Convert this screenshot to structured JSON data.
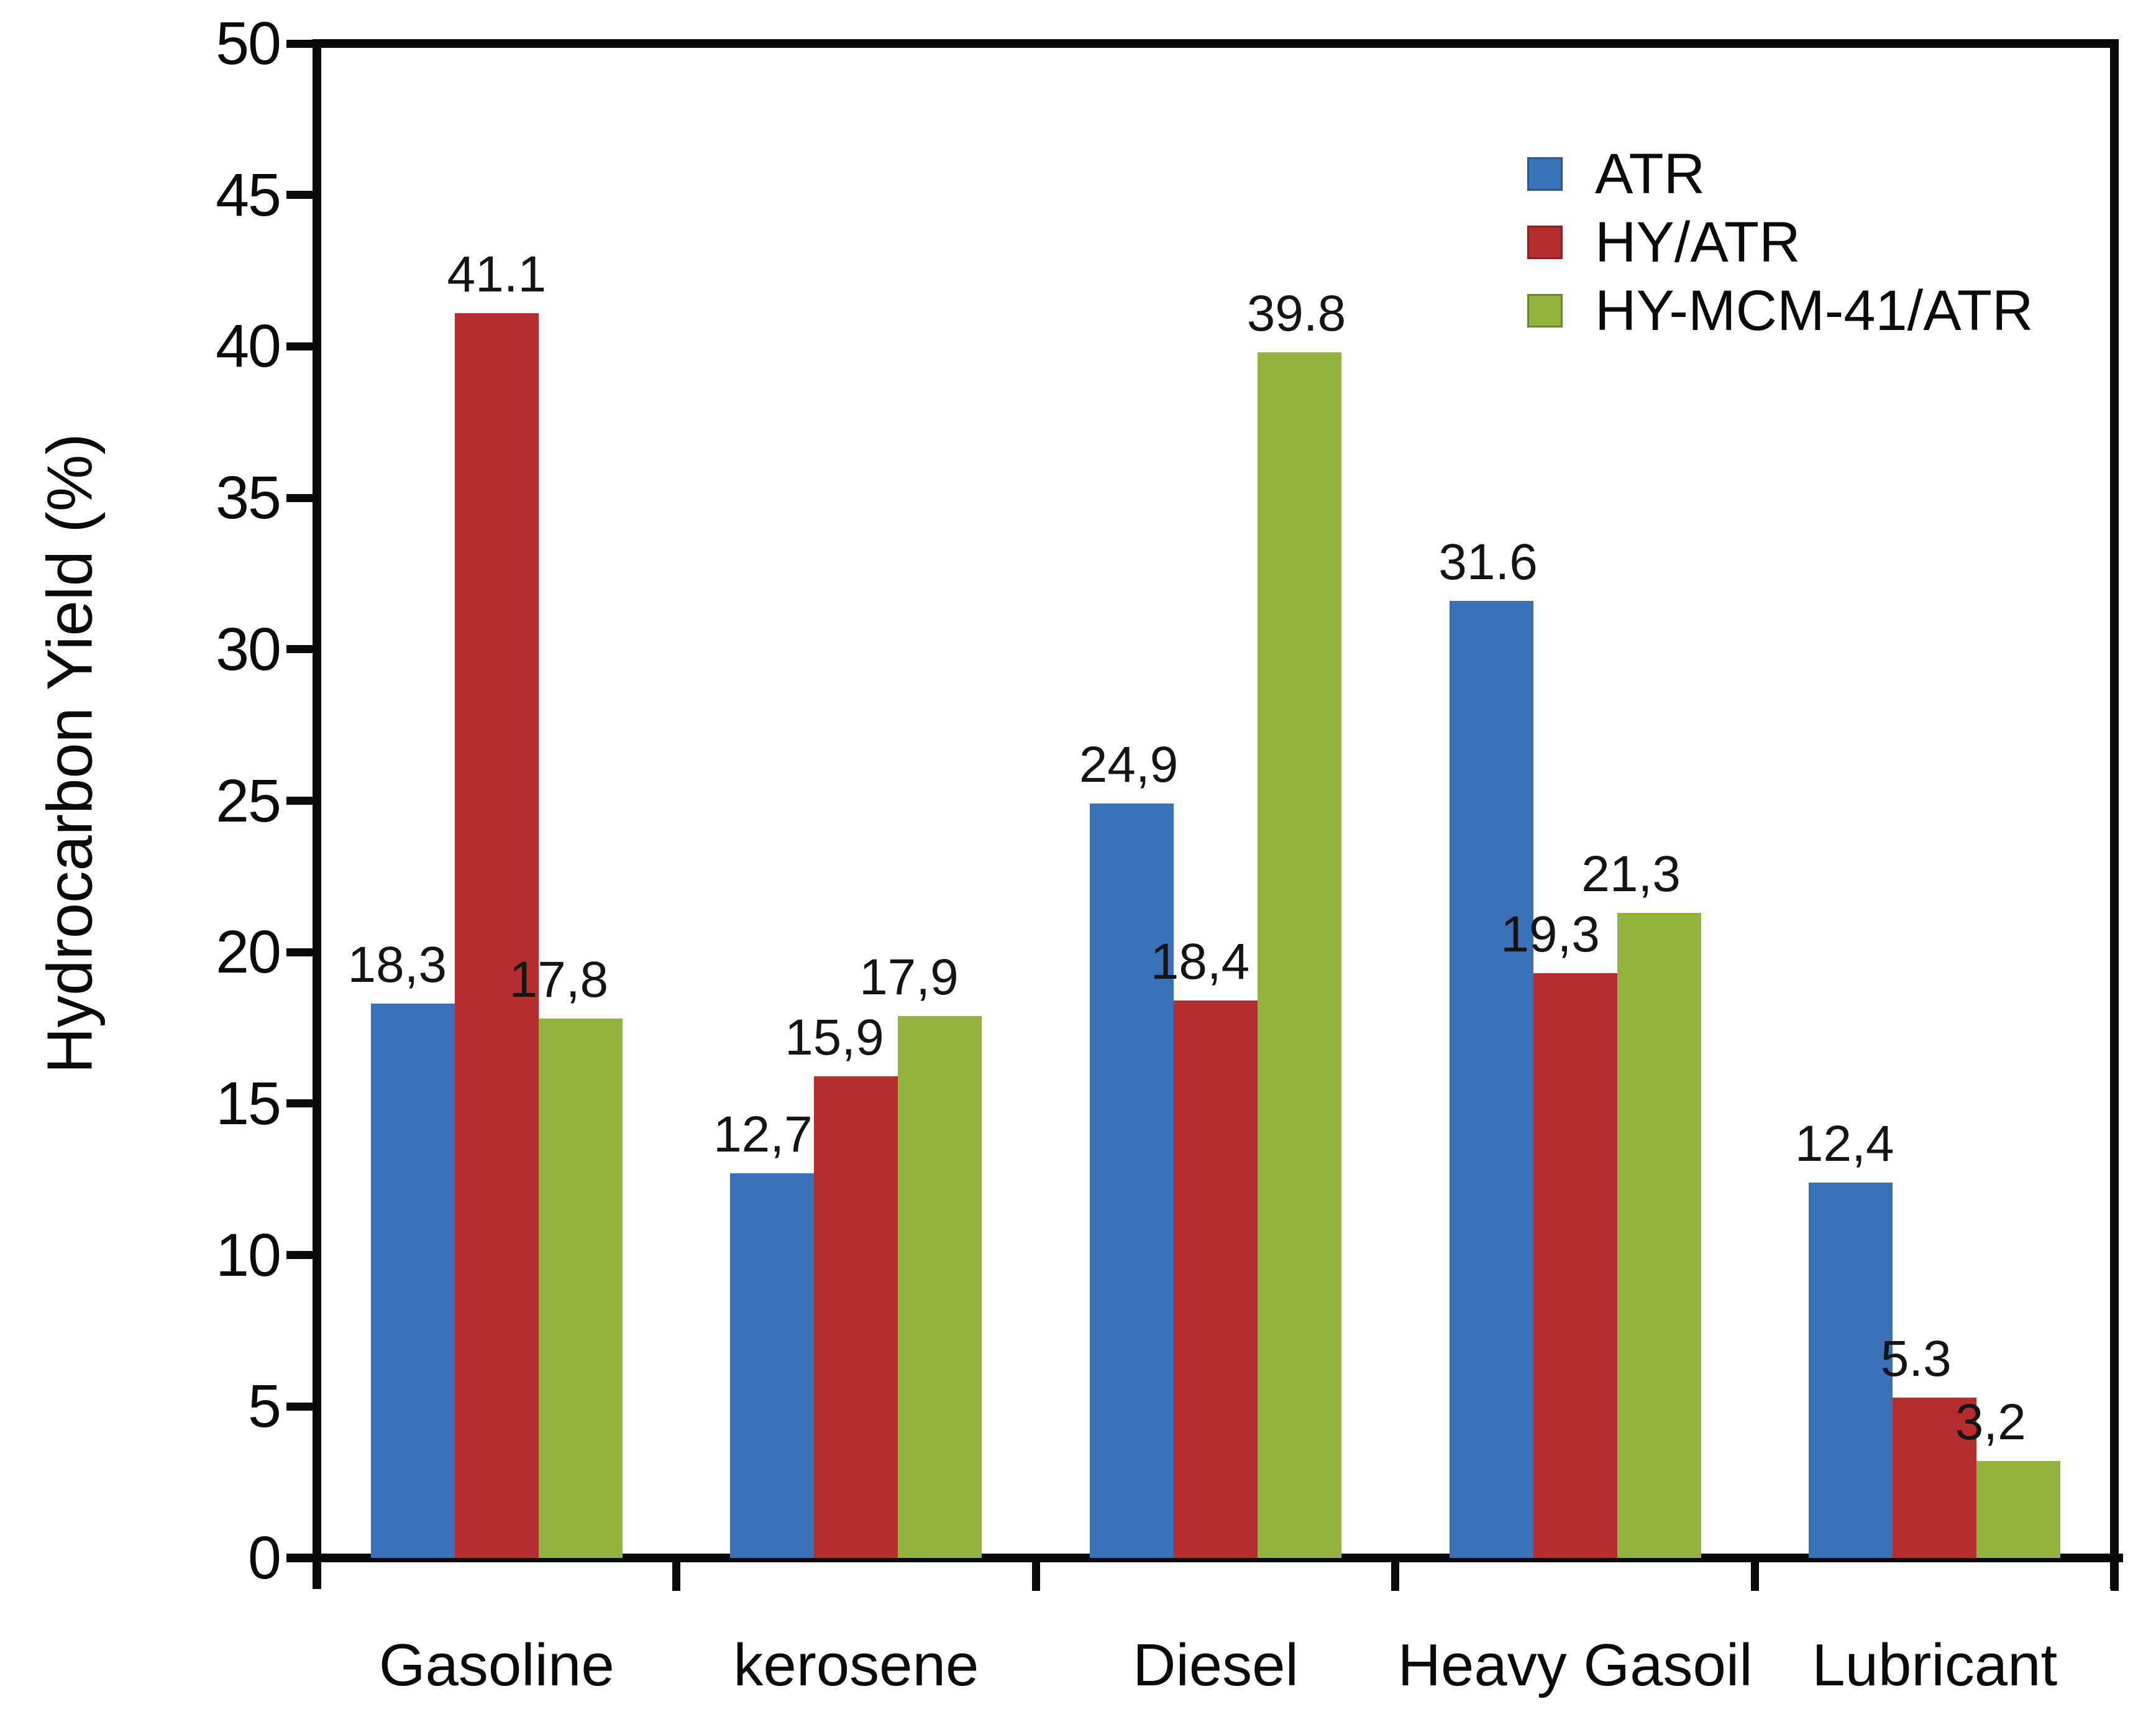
{
  "chart_data": {
    "type": "bar",
    "title": "",
    "xlabel": "",
    "ylabel": "Hydrocarbon Yield (%)",
    "ylim": [
      0,
      50
    ],
    "yticks": [
      0,
      5,
      10,
      15,
      20,
      25,
      30,
      35,
      40,
      45,
      50
    ],
    "grid": false,
    "legend_position": "top-right",
    "categories": [
      "Gasoline",
      "kerosene",
      "Diesel",
      "Heavy Gasoil",
      "Lubricant"
    ],
    "series": [
      {
        "name": "ATR",
        "color": "#3A71B8",
        "values": [
          18.3,
          12.7,
          24.9,
          31.6,
          12.4
        ],
        "labels": [
          "18,3",
          "12,7",
          "24,9",
          "31.6",
          "12,4"
        ]
      },
      {
        "name": "HY/ATR",
        "color": "#B62D30",
        "values": [
          41.1,
          15.9,
          18.4,
          19.3,
          5.3
        ],
        "labels": [
          "41.1",
          "15,9",
          "18,4",
          "19,3",
          "5.3"
        ]
      },
      {
        "name": "HY-MCM-41/ATR",
        "color": "#92B43E",
        "values": [
          17.8,
          17.9,
          39.8,
          21.3,
          3.2
        ],
        "labels": [
          "17,8",
          "17,9",
          "39.8",
          "21,3",
          "3,2"
        ]
      }
    ]
  }
}
